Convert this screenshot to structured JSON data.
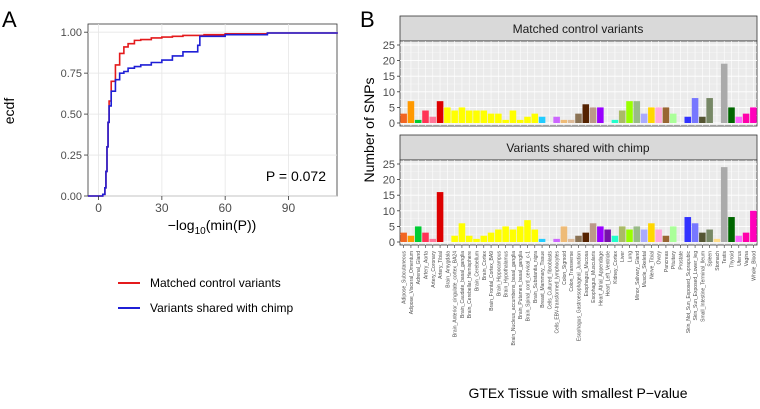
{
  "chart_data": [
    {
      "type": "line",
      "panel_label": "A",
      "xlabel_main": "−log",
      "xlabel_sub": "10",
      "xlabel_tail": "(min(P))",
      "ylabel": "ecdf",
      "xlim": [
        -5,
        113
      ],
      "ylim": [
        0,
        1.05
      ],
      "x_ticks": [
        0,
        30,
        60,
        90
      ],
      "x_tick_labels": [
        "0",
        "30",
        "60",
        "90"
      ],
      "y_ticks": [
        0,
        0.25,
        0.5,
        0.75,
        1
      ],
      "y_tick_labels": [
        "0.00",
        "0.25",
        "0.50",
        "0.75",
        "1.00"
      ],
      "annotation": "P = 0.072",
      "series": [
        {
          "name": "Matched control variants",
          "color": "#e41a1c",
          "x": [
            -5,
            0,
            2,
            3,
            3.5,
            4,
            4.5,
            5,
            6,
            8,
            10,
            12,
            14,
            17,
            20,
            25,
            30,
            35,
            40,
            50,
            60,
            80,
            113
          ],
          "y": [
            0,
            0,
            0.01,
            0.05,
            0.15,
            0.3,
            0.45,
            0.58,
            0.7,
            0.8,
            0.87,
            0.91,
            0.93,
            0.95,
            0.955,
            0.965,
            0.97,
            0.975,
            0.98,
            0.985,
            0.99,
            0.995,
            1
          ]
        },
        {
          "name": "Variants shared with chimp",
          "color": "#1f1fd6",
          "x": [
            -5,
            0,
            2,
            3,
            3.5,
            4,
            4.5,
            5,
            6,
            8,
            10,
            12,
            14,
            17,
            20,
            25,
            30,
            35,
            40,
            47,
            48,
            60,
            80,
            113
          ],
          "y": [
            0,
            0,
            0.01,
            0.05,
            0.15,
            0.3,
            0.45,
            0.55,
            0.64,
            0.71,
            0.75,
            0.76,
            0.78,
            0.79,
            0.8,
            0.815,
            0.83,
            0.855,
            0.88,
            0.92,
            0.975,
            0.985,
            0.995,
            1
          ]
        }
      ]
    },
    {
      "type": "bar",
      "panel_label": "B",
      "title": "",
      "xlabel": "GTEx Tissue with smallest P−value",
      "ylabel": "Number of SNPs",
      "ylim": [
        0,
        25
      ],
      "y_ticks": [
        0,
        5,
        10,
        15,
        20,
        25
      ],
      "y_tick_labels": [
        "0",
        "5",
        "10",
        "15",
        "20",
        "25"
      ],
      "categories": [
        "Adipose_Subcutaneous",
        "Adipose_Visceral_Omentum",
        "Adrenal_Gland",
        "Artery_Aorta",
        "Artery_Coronary",
        "Artery_Tibial",
        "Brain_Amygdala",
        "Brain_Anterior_cingulate_cortex_BA24",
        "Brain_Caudate_basal_ganglia",
        "Brain_Cerebellar_Hemisphere",
        "Brain_Cerebellum",
        "Brain_Cortex",
        "Brain_Frontal_Cortex_BA9",
        "Brain_Hippocampus",
        "Brain_Hypothalamus",
        "Brain_Nucleus_accumbens_basal_ganglia",
        "Brain_Putamen_basal_ganglia",
        "Brain_Spinal_cord_cervical_c-1",
        "Brain_Substantia_nigra",
        "Breast_Mammary_Tissue",
        "Cells_Cultured_fibroblasts",
        "Cells_EBV-transformed_lymphocytes",
        "Colon_Sigmoid",
        "Colon_Transverse",
        "Esophagus_Gastroesophageal_Junction",
        "Esophagus_Mucosa",
        "Esophagus_Muscularis",
        "Heart_Atrial_Appendage",
        "Heart_Left_Ventricle",
        "Kidney_Cortex",
        "Liver",
        "Lung",
        "Minor_Salivary_Gland",
        "Muscle_Skeletal",
        "Nerve_Tibial",
        "Ovary",
        "Pancreas",
        "Pituitary",
        "Prostate",
        "Skin_Not_Sun_Exposed_Suprapubic",
        "Skin_Sun_Exposed_Lower_leg",
        "Small_Intestine_Terminal_Ileum",
        "Spleen",
        "Stomach",
        "Testis",
        "Thyroid",
        "Uterus",
        "Vagina",
        "Whole_Blood"
      ],
      "colors": [
        "#f26522",
        "#ff9900",
        "#00cc33",
        "#ff3355",
        "#ff7799",
        "#dd0000",
        "#ffff00",
        "#ffff00",
        "#ffff00",
        "#ffff00",
        "#ffff00",
        "#ffff00",
        "#ffff00",
        "#ffff00",
        "#ffff00",
        "#ffff00",
        "#ffff00",
        "#ffff00",
        "#ffff00",
        "#22ccff",
        "#aaeeff",
        "#cc66ff",
        "#eebb77",
        "#ddbb99",
        "#8b7355",
        "#552200",
        "#bb9988",
        "#9900ff",
        "#7711aa",
        "#22ffcc",
        "#aabb66",
        "#99ff00",
        "#99bb88",
        "#aaaaff",
        "#ffd700",
        "#ffaadd",
        "#996633",
        "#aaff99",
        "#dddddd",
        "#3333ff",
        "#7777ff",
        "#555533",
        "#778866",
        "#ffdd88",
        "#aaaaaa",
        "#006600",
        "#ff66ff",
        "#ff00aa",
        "#ff00bb"
      ],
      "series": [
        {
          "name": "Matched control variants",
          "values": [
            3,
            7,
            1,
            4,
            2,
            7,
            5,
            4,
            5,
            4,
            4,
            4,
            3,
            3,
            1,
            4,
            1,
            2,
            3,
            2,
            0,
            2,
            1,
            1,
            3,
            6,
            5,
            5,
            0,
            1,
            4,
            7,
            7,
            3,
            5,
            5,
            5,
            3,
            0,
            2,
            8,
            2,
            8,
            0,
            19,
            5,
            2,
            3,
            5
          ]
        },
        {
          "name": "Variants shared with chimp",
          "values": [
            3,
            2,
            5,
            3,
            1,
            16,
            0,
            2,
            6,
            2,
            1,
            2,
            3,
            4,
            5,
            4,
            5,
            7,
            4,
            1,
            0,
            1,
            5,
            1,
            2,
            3,
            6,
            5,
            4,
            2,
            5,
            4,
            5,
            4,
            6,
            4,
            2,
            5,
            0,
            8,
            6,
            3,
            4,
            1,
            24,
            8,
            2,
            3,
            10
          ]
        }
      ]
    }
  ],
  "legend": {
    "items": [
      {
        "label": "Matched control variants",
        "color": "#e41a1c"
      },
      {
        "label": "Variants shared with chimp",
        "color": "#1f1fd6"
      }
    ]
  }
}
